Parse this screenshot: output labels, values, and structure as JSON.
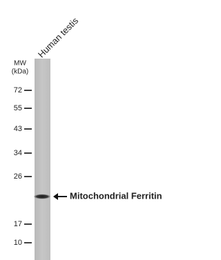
{
  "lane_label": "Human testis",
  "mw_label": "MW",
  "unit_label": "(kDa)",
  "markers": [
    72,
    55,
    43,
    34,
    26,
    17,
    10
  ],
  "band_label": "Mitochondrial Ferritin"
}
